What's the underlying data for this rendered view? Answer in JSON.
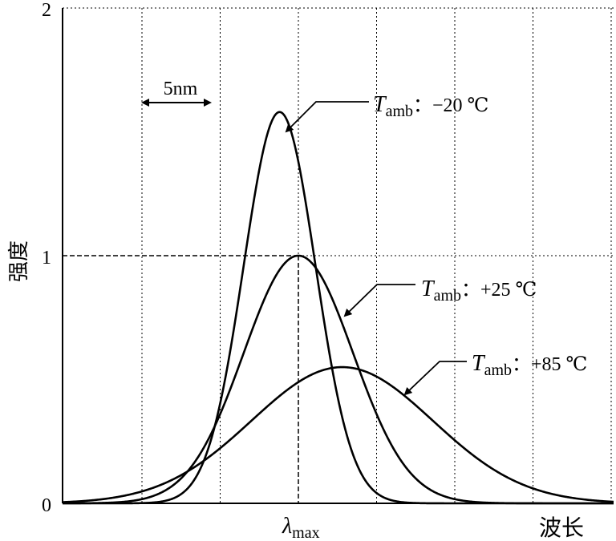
{
  "chart_data": {
    "type": "line",
    "xlabel": "波长",
    "ylabel": "强度",
    "y_ticks": [
      "0",
      "1",
      "2"
    ],
    "x_tick_label": {
      "main": "λ",
      "sub": "max"
    },
    "ylim": [
      0,
      2
    ],
    "grid": true,
    "x_grid_step_nm": 5,
    "width_annotation": "5nm",
    "series": [
      {
        "name": "−20 ℃",
        "peak": 1.58,
        "peak_offset_nm": -1.2,
        "sigma_nm": 2.3,
        "line_color": "#000000"
      },
      {
        "name": "+25 ℃",
        "peak": 1.0,
        "peak_offset_nm": 0.0,
        "sigma_nm": 3.5,
        "line_color": "#000000"
      },
      {
        "name": "+85 ℃",
        "peak": 0.55,
        "peak_offset_nm": 2.8,
        "sigma_nm": 5.8,
        "line_color": "#000000"
      }
    ],
    "label_prefix": {
      "main": "T",
      "sub": "amb",
      "sep": "："
    }
  },
  "colors": {
    "axis": "#000000",
    "grid": "#000000",
    "background": "#ffffff"
  }
}
